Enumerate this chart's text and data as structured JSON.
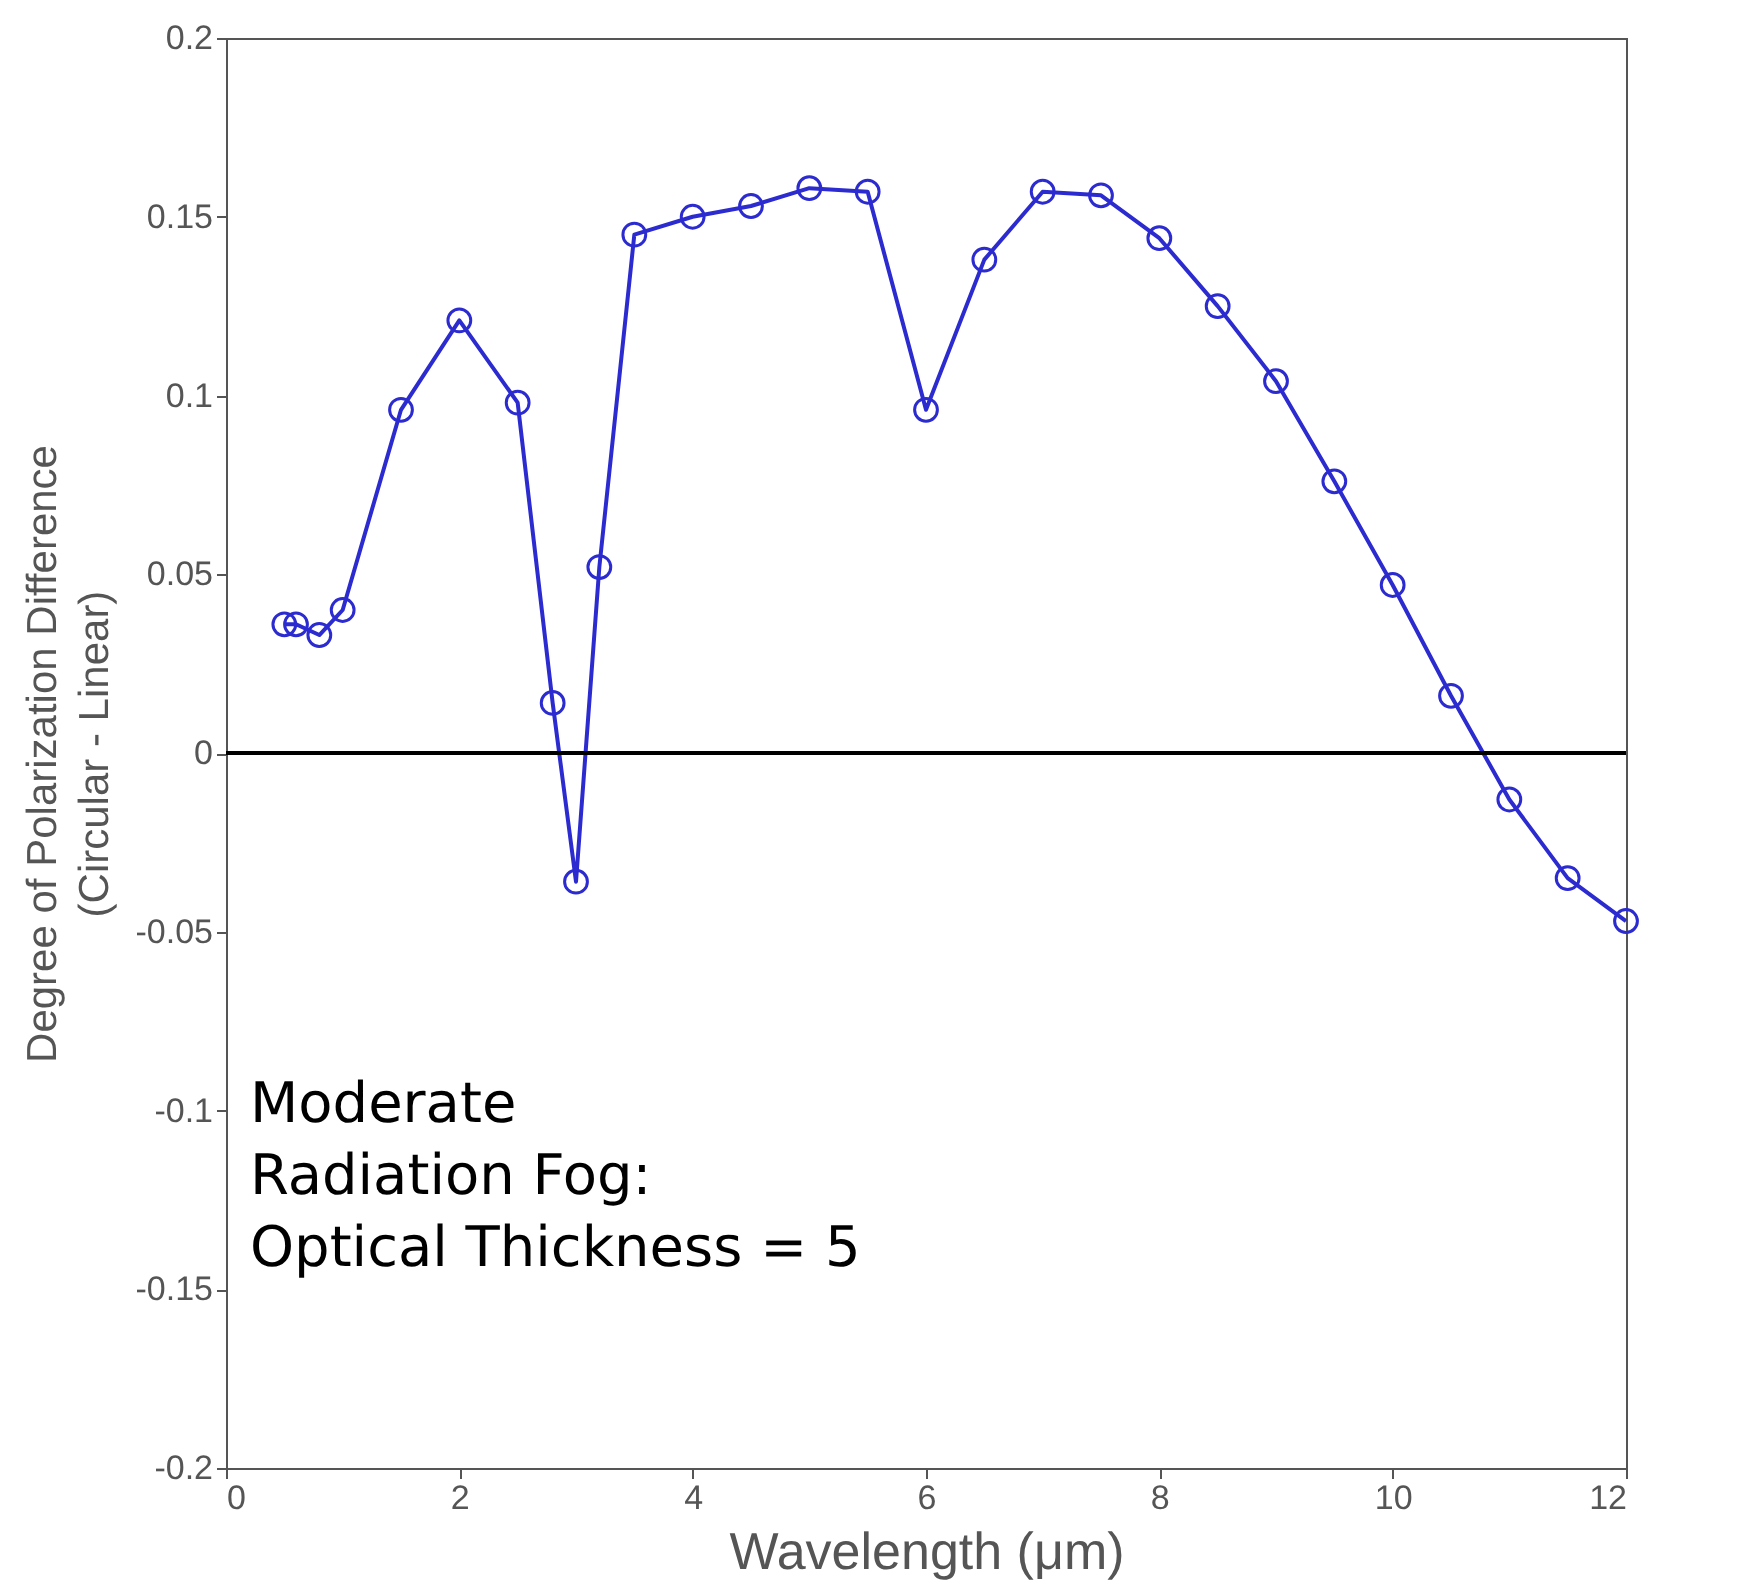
{
  "chart_data": {
    "type": "line",
    "xlabel": "Wavelength (μm)",
    "ylabel": "Degree of Polarization Difference\n(Circular - Linear)",
    "x": [
      0.5,
      0.6,
      0.8,
      1.0,
      1.5,
      2.0,
      2.5,
      2.8,
      3.0,
      3.2,
      3.5,
      4.0,
      4.5,
      5.0,
      5.5,
      6.0,
      6.5,
      7.0,
      7.5,
      8.0,
      8.5,
      9.0,
      9.5,
      10.0,
      10.5,
      11.0,
      11.5,
      12.0
    ],
    "series": [
      {
        "color": "#2b2bd0",
        "values": [
          0.036,
          0.036,
          0.033,
          0.04,
          0.096,
          0.121,
          0.098,
          0.014,
          -0.036,
          0.052,
          0.145,
          0.15,
          0.153,
          0.158,
          0.157,
          0.096,
          0.138,
          0.157,
          0.156,
          0.144,
          0.125,
          0.104,
          0.076,
          0.047,
          0.016,
          -0.013,
          -0.035,
          -0.047
        ]
      }
    ],
    "marker": "circle",
    "line_style": "solid",
    "grid": false,
    "xlim": [
      0,
      12
    ],
    "xticks": [
      0,
      2,
      4,
      6,
      8,
      10,
      12
    ],
    "ylim": [
      -0.2,
      0.2
    ],
    "yticks": [
      -0.2,
      -0.15,
      -0.1,
      -0.05,
      0,
      0.05,
      0.1,
      0.15,
      0.2
    ],
    "ref_lines": [
      {
        "axis": "y",
        "value": 0,
        "color": "#000000"
      }
    ],
    "annotations": [
      "Moderate\nRadiation Fog:\nOptical Thickness = 5"
    ]
  }
}
